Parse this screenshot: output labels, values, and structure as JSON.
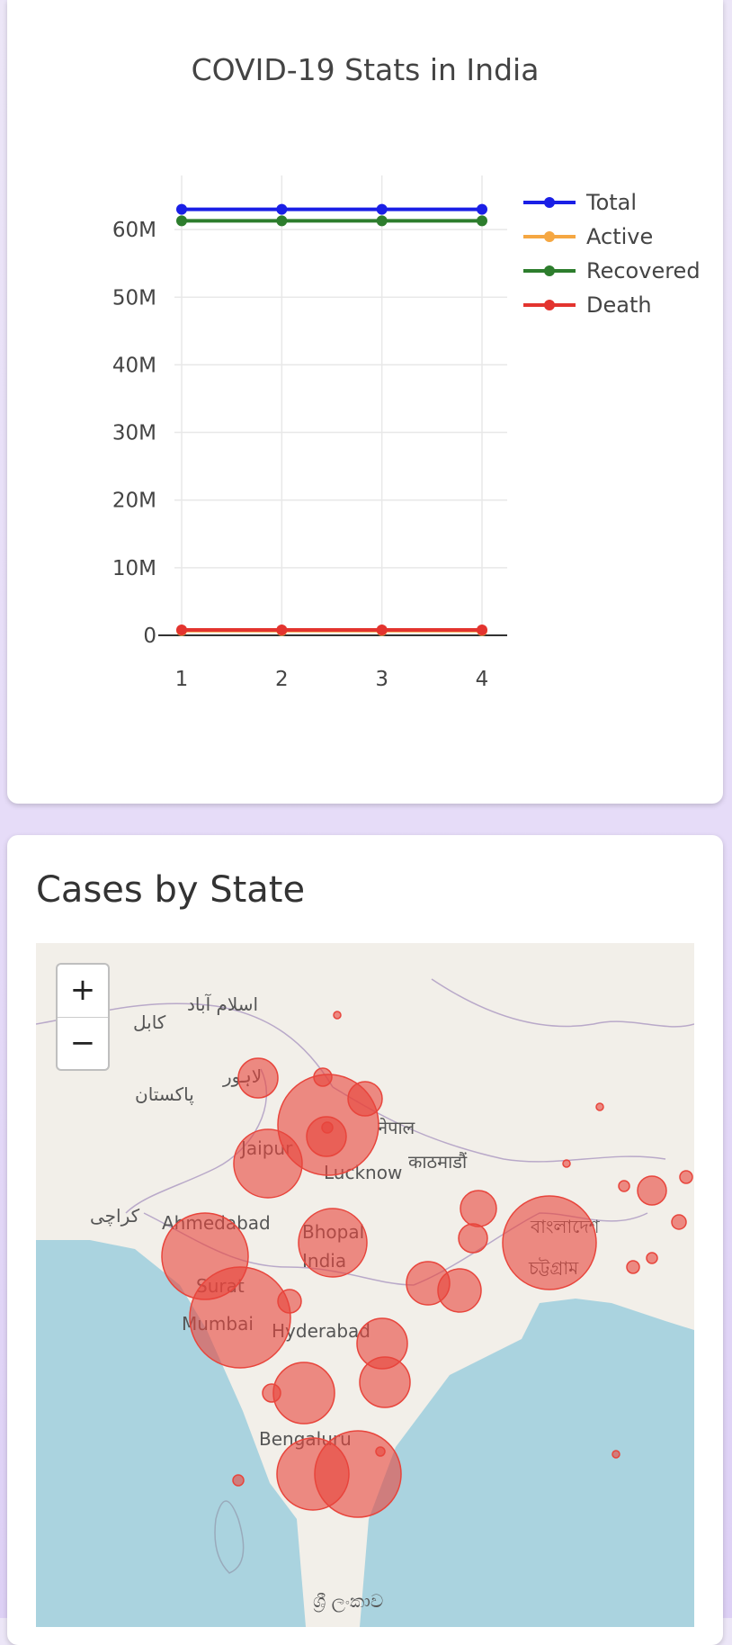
{
  "chart": {
    "title": "COVID-19 Stats in India"
  },
  "chart_data": {
    "type": "line",
    "title": "COVID-19 Stats in India",
    "x": [
      1,
      2,
      3,
      4
    ],
    "series": [
      {
        "name": "Total",
        "color": "#1a1fe6",
        "values": [
          63000000,
          63000000,
          63000000,
          63000000
        ]
      },
      {
        "name": "Active",
        "color": "#f5a742",
        "values": [
          700000,
          700000,
          700000,
          700000
        ]
      },
      {
        "name": "Recovered",
        "color": "#2d7d2d",
        "values": [
          61300000,
          61300000,
          61300000,
          61300000
        ]
      },
      {
        "name": "Death",
        "color": "#e3342f",
        "values": [
          800000,
          800000,
          800000,
          800000
        ]
      }
    ],
    "ylim": [
      0,
      68000000
    ],
    "yticks": [
      0,
      10000000,
      20000000,
      30000000,
      40000000,
      50000000,
      60000000
    ],
    "ytick_labels": [
      "0",
      "10M",
      "20M",
      "30M",
      "40M",
      "50M",
      "60M"
    ],
    "xticks": [
      "1",
      "2",
      "3",
      "4"
    ],
    "grid": true,
    "legend": "top-right"
  },
  "map_section": {
    "title": "Cases by State",
    "zoom_in": "+",
    "zoom_out": "−",
    "labels": [
      "اسلام آباد",
      "کابل",
      "لاہور",
      "پاکستان",
      "کراچی",
      "Jaipur",
      "Lucknow",
      "नेपाल",
      "काठमाडौं",
      "Ahmedabad",
      "Bhopal",
      "India",
      "Surat",
      "Mumbai",
      "Hyderabad",
      "বাংলাদেশ",
      "চট্টগ্রাম",
      "Bengaluru",
      "ශ්‍රී ලංකාව"
    ],
    "bubble_color": "#e8453c"
  }
}
